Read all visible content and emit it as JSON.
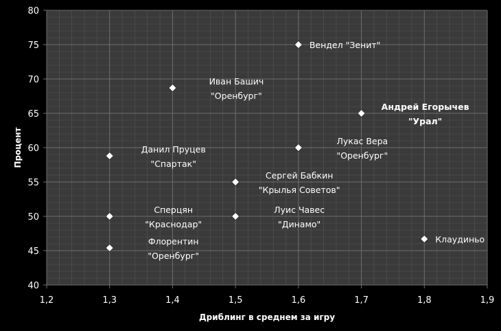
{
  "chart_data": {
    "type": "scatter",
    "xlabel": "Дриблинг в среднем за игру",
    "ylabel": "Процент",
    "xlim": [
      1.2,
      1.9
    ],
    "ylim": [
      40,
      80
    ],
    "x_ticks": [
      "1,2",
      "1,3",
      "1,4",
      "1,5",
      "1,6",
      "1,7",
      "1,8",
      "1,9"
    ],
    "y_ticks": [
      "40",
      "45",
      "50",
      "55",
      "60",
      "65",
      "70",
      "75",
      "80"
    ],
    "grid": true,
    "background_color": "#3a3a3a",
    "grid_color": "#6e6e6e",
    "marker": "diamond",
    "marker_color": "#ffffff",
    "points": [
      {
        "x": 1.6,
        "y": 75.0,
        "lines": [
          "Вендел  \"Зенит\""
        ],
        "bold": false
      },
      {
        "x": 1.4,
        "y": 68.7,
        "lines": [
          "Иван Башич",
          "\"Оренбург\""
        ],
        "bold": false
      },
      {
        "x": 1.7,
        "y": 65.0,
        "lines": [
          "Андрей Егорычев",
          "\"Урал\""
        ],
        "bold": true
      },
      {
        "x": 1.3,
        "y": 58.8,
        "lines": [
          "Данил Пруцев",
          "\"Спартак\""
        ],
        "bold": false
      },
      {
        "x": 1.6,
        "y": 60.0,
        "lines": [
          "Лукас Вера",
          "\"Оренбург\""
        ],
        "bold": false
      },
      {
        "x": 1.5,
        "y": 55.0,
        "lines": [
          "Сергей Бабкин",
          "\"Крылья Советов\""
        ],
        "bold": false
      },
      {
        "x": 1.3,
        "y": 50.0,
        "lines": [
          "Сперцян",
          "\"Краснодар\""
        ],
        "bold": false
      },
      {
        "x": 1.5,
        "y": 50.0,
        "lines": [
          "Луис Чавес",
          "\"Динамо\""
        ],
        "bold": false
      },
      {
        "x": 1.3,
        "y": 45.4,
        "lines": [
          "Флорентин",
          "\"Оренбург\""
        ],
        "bold": false
      },
      {
        "x": 1.8,
        "y": 46.7,
        "lines": [
          "Клаудиньо"
        ],
        "bold": false
      }
    ]
  }
}
